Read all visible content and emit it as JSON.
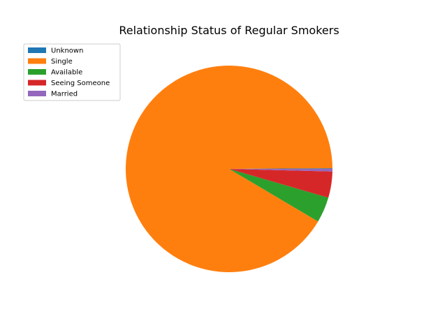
{
  "chart_data": {
    "type": "pie",
    "title": "Relationship Status of Regular Smokers",
    "labels": [
      "Unknown",
      "Single",
      "Available",
      "Seeing Someone",
      "Married"
    ],
    "values": [
      0.1,
      91.4,
      4.0,
      4.1,
      0.4
    ],
    "colors": [
      "#1f77b4",
      "#ff7f0e",
      "#2ca02c",
      "#d62728",
      "#9467bd"
    ],
    "start_angle_deg": 0,
    "direction": "counterclockwise",
    "legend": {
      "placement": "upper-left",
      "entries": [
        "Unknown",
        "Single",
        "Available",
        "Seeing Someone",
        "Married"
      ]
    }
  }
}
